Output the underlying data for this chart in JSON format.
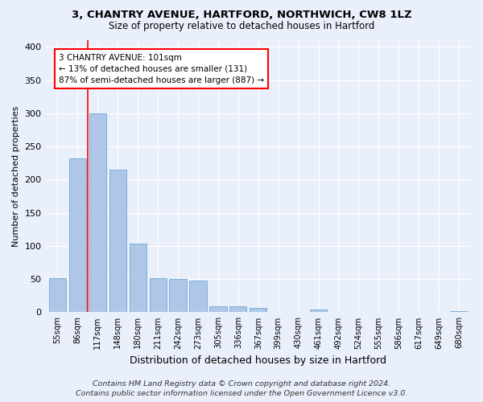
{
  "title1": "3, CHANTRY AVENUE, HARTFORD, NORTHWICH, CW8 1LZ",
  "title2": "Size of property relative to detached houses in Hartford",
  "xlabel": "Distribution of detached houses by size in Hartford",
  "ylabel": "Number of detached properties",
  "categories": [
    "55sqm",
    "86sqm",
    "117sqm",
    "148sqm",
    "180sqm",
    "211sqm",
    "242sqm",
    "273sqm",
    "305sqm",
    "336sqm",
    "367sqm",
    "399sqm",
    "430sqm",
    "461sqm",
    "492sqm",
    "524sqm",
    "555sqm",
    "586sqm",
    "617sqm",
    "649sqm",
    "680sqm"
  ],
  "values": [
    52,
    232,
    300,
    215,
    103,
    52,
    50,
    48,
    9,
    9,
    6,
    0,
    0,
    4,
    0,
    0,
    0,
    0,
    0,
    0,
    2
  ],
  "bar_color": "#aec6e8",
  "bar_edge_color": "#6fa8d4",
  "annotation_text": "3 CHANTRY AVENUE: 101sqm\n← 13% of detached houses are smaller (131)\n87% of semi-detached houses are larger (887) →",
  "annotation_box_color": "white",
  "annotation_box_edge_color": "red",
  "vline_color": "red",
  "footer": "Contains HM Land Registry data © Crown copyright and database right 2024.\nContains public sector information licensed under the Open Government Licence v3.0.",
  "background_color": "#eaf0fb",
  "ylim": [
    0,
    410
  ],
  "yticks": [
    0,
    50,
    100,
    150,
    200,
    250,
    300,
    350,
    400
  ]
}
